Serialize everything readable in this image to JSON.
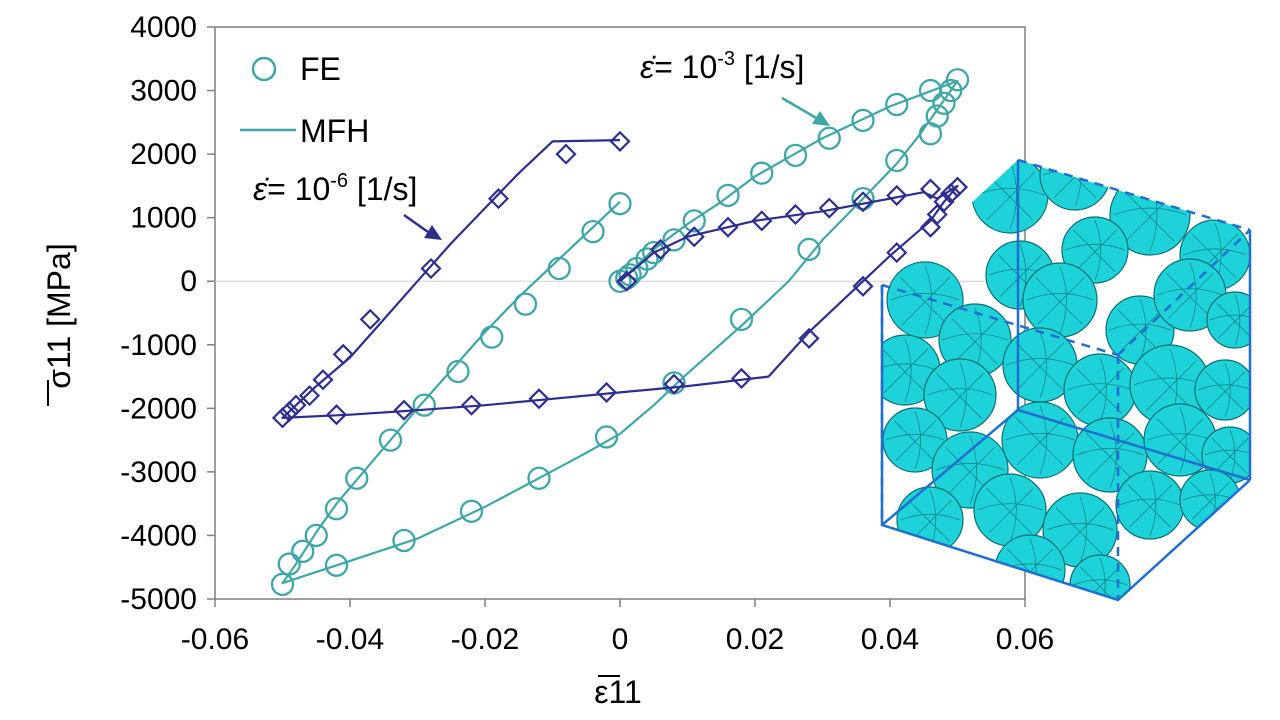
{
  "chart_data": {
    "type": "line",
    "xlabel": "ε11",
    "ylabel": "σ11 [MPa]",
    "xlim": [
      -0.06,
      0.06
    ],
    "ylim": [
      -5000,
      4000
    ],
    "xticks": [
      -0.06,
      -0.04,
      -0.02,
      0,
      0.02,
      0.04,
      0.06
    ],
    "xtick_labels": [
      "-0.06",
      "-0.04",
      "-0.02",
      "0",
      "0.02",
      "0.04",
      "0.06"
    ],
    "yticks": [
      4000,
      3000,
      2000,
      1000,
      0,
      -1000,
      -2000,
      -3000,
      -4000,
      -5000
    ],
    "ytick_labels": [
      "4000",
      "3000",
      "2000",
      "1000",
      "0",
      "-1000",
      "-2000",
      "-3000",
      "-4000",
      "-5000"
    ],
    "grid": false,
    "legend": {
      "position": "top-left",
      "entries": [
        {
          "label": "FE",
          "marker": "circle"
        },
        {
          "label": "MFH",
          "marker": "line"
        }
      ]
    },
    "annotations": [
      {
        "rate_symbol": "ε̇",
        "equals": "= 10",
        "exponent": "-3",
        "unit": " [1/s]",
        "color": "#3fa6a6"
      },
      {
        "rate_symbol": "ε̇",
        "equals": "= 10",
        "exponent": "-6",
        "unit": " [1/s]",
        "color": "#2e2e8f"
      }
    ],
    "colors": {
      "teal": "#3fa6a6",
      "navy": "#2e2e8f",
      "cyan_fill": "#1ed2da",
      "cube_edge": "#1f6fd0"
    },
    "series": [
      {
        "rate": "10^-3",
        "color": "#3fa6a6",
        "mfh_curve": [
          [
            0,
            0
          ],
          [
            0.005,
            500
          ],
          [
            0.01,
            900
          ],
          [
            0.015,
            1250
          ],
          [
            0.02,
            1650
          ],
          [
            0.025,
            1950
          ],
          [
            0.03,
            2250
          ],
          [
            0.035,
            2500
          ],
          [
            0.04,
            2750
          ],
          [
            0.045,
            2950
          ],
          [
            0.05,
            3150
          ],
          [
            0.048,
            2850
          ],
          [
            0.046,
            2550
          ],
          [
            0.044,
            2250
          ],
          [
            0.041,
            1850
          ],
          [
            0.036,
            1300
          ],
          [
            0.03,
            650
          ],
          [
            0.025,
            0
          ],
          [
            0.018,
            -700
          ],
          [
            0.01,
            -1450
          ],
          [
            0.005,
            -1950
          ],
          [
            0,
            -2400
          ],
          [
            -0.005,
            -2700
          ],
          [
            -0.012,
            -3100
          ],
          [
            -0.02,
            -3550
          ],
          [
            -0.03,
            -4050
          ],
          [
            -0.04,
            -4400
          ],
          [
            -0.05,
            -4750
          ],
          [
            -0.048,
            -4450
          ],
          [
            -0.045,
            -3950
          ],
          [
            -0.042,
            -3500
          ],
          [
            -0.038,
            -3000
          ],
          [
            -0.034,
            -2500
          ],
          [
            -0.03,
            -2000
          ],
          [
            -0.025,
            -1400
          ],
          [
            -0.02,
            -800
          ],
          [
            -0.015,
            -250
          ],
          [
            -0.01,
            250
          ],
          [
            -0.005,
            750
          ],
          [
            0,
            1250
          ]
        ],
        "fe_points": [
          [
            0,
            0
          ],
          [
            0.001,
            50
          ],
          [
            0.0015,
            100
          ],
          [
            0.0025,
            200
          ],
          [
            0.004,
            350
          ],
          [
            0.005,
            450
          ],
          [
            0.008,
            650
          ],
          [
            0.011,
            950
          ],
          [
            0.016,
            1350
          ],
          [
            0.021,
            1700
          ],
          [
            0.026,
            1980
          ],
          [
            0.031,
            2250
          ],
          [
            0.036,
            2530
          ],
          [
            0.041,
            2780
          ],
          [
            0.046,
            3000
          ],
          [
            0.05,
            3170
          ],
          [
            0.049,
            3000
          ],
          [
            0.048,
            2800
          ],
          [
            0.047,
            2600
          ],
          [
            0.046,
            2320
          ],
          [
            0.041,
            1900
          ],
          [
            0.036,
            1300
          ],
          [
            0.028,
            500
          ],
          [
            0.018,
            -600
          ],
          [
            0.008,
            -1600
          ],
          [
            -0.002,
            -2450
          ],
          [
            -0.012,
            -3100
          ],
          [
            -0.022,
            -3620
          ],
          [
            -0.032,
            -4080
          ],
          [
            -0.042,
            -4470
          ],
          [
            -0.05,
            -4770
          ],
          [
            -0.049,
            -4450
          ],
          [
            -0.047,
            -4250
          ],
          [
            -0.045,
            -4000
          ],
          [
            -0.042,
            -3580
          ],
          [
            -0.039,
            -3100
          ],
          [
            -0.034,
            -2500
          ],
          [
            -0.029,
            -1950
          ],
          [
            -0.024,
            -1420
          ],
          [
            -0.019,
            -880
          ],
          [
            -0.014,
            -360
          ],
          [
            -0.009,
            200
          ],
          [
            -0.004,
            780
          ],
          [
            0,
            1220
          ]
        ]
      },
      {
        "rate": "10^-6",
        "color": "#2e2e8f",
        "mfh_curve": [
          [
            0,
            0
          ],
          [
            0.005,
            450
          ],
          [
            0.01,
            700
          ],
          [
            0.02,
            950
          ],
          [
            0.03,
            1100
          ],
          [
            0.04,
            1300
          ],
          [
            0.045,
            1400
          ],
          [
            0.047,
            1300
          ],
          [
            0.05,
            1500
          ],
          [
            0.048,
            1250
          ],
          [
            0.046,
            950
          ],
          [
            0.04,
            400
          ],
          [
            0.035,
            -100
          ],
          [
            0.028,
            -800
          ],
          [
            0.022,
            -1500
          ],
          [
            0.01,
            -1650
          ],
          [
            0,
            -1750
          ],
          [
            -0.01,
            -1850
          ],
          [
            -0.02,
            -1950
          ],
          [
            -0.03,
            -2030
          ],
          [
            -0.04,
            -2100
          ],
          [
            -0.05,
            -2150
          ],
          [
            -0.048,
            -1950
          ],
          [
            -0.045,
            -1650
          ],
          [
            -0.04,
            -1200
          ],
          [
            -0.035,
            -600
          ],
          [
            -0.03,
            0
          ],
          [
            -0.025,
            600
          ],
          [
            -0.02,
            1150
          ],
          [
            -0.015,
            1700
          ],
          [
            -0.01,
            2200
          ],
          [
            0,
            2220
          ]
        ],
        "fe_points": [
          [
            0.001,
            0
          ],
          [
            0.006,
            500
          ],
          [
            0.011,
            700
          ],
          [
            0.016,
            850
          ],
          [
            0.021,
            950
          ],
          [
            0.026,
            1050
          ],
          [
            0.031,
            1150
          ],
          [
            0.036,
            1250
          ],
          [
            0.041,
            1350
          ],
          [
            0.046,
            1450
          ],
          [
            0.05,
            1480
          ],
          [
            0.049,
            1380
          ],
          [
            0.048,
            1250
          ],
          [
            0.047,
            1050
          ],
          [
            0.046,
            850
          ],
          [
            0.041,
            450
          ],
          [
            0.036,
            -80
          ],
          [
            0.028,
            -900
          ],
          [
            0.018,
            -1530
          ],
          [
            0.008,
            -1620
          ],
          [
            -0.002,
            -1750
          ],
          [
            -0.012,
            -1850
          ],
          [
            -0.022,
            -1950
          ],
          [
            -0.032,
            -2030
          ],
          [
            -0.042,
            -2100
          ],
          [
            -0.05,
            -2150
          ],
          [
            -0.049,
            -2050
          ],
          [
            -0.048,
            -1950
          ],
          [
            -0.046,
            -1800
          ],
          [
            -0.044,
            -1550
          ],
          [
            -0.041,
            -1150
          ],
          [
            -0.037,
            -600
          ],
          [
            -0.028,
            200
          ],
          [
            -0.018,
            1300
          ],
          [
            -0.008,
            2000
          ],
          [
            0,
            2200
          ]
        ]
      }
    ]
  }
}
